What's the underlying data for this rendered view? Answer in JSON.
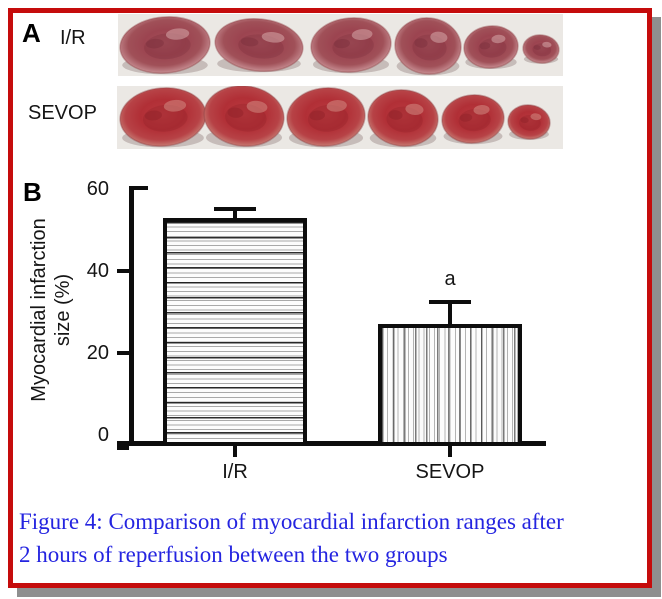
{
  "figure": {
    "panel_a": {
      "label": "A",
      "rows": [
        {
          "label": "I/R",
          "slices": 6
        },
        {
          "label": "SEVOP",
          "slices": 6
        }
      ],
      "tissue_colors": {
        "strip_background": "#ebe8e4",
        "ir_main": "#9c4450",
        "ir_dark": "#7a2e3c",
        "ir_light": "#dcb2b2",
        "sevop_main": "#b12f36",
        "sevop_dark": "#8e2228",
        "sevop_light": "#d6948a"
      }
    },
    "panel_b": {
      "label": "B"
    },
    "caption_lines": [
      "Figure 4: Comparison of myocardial infarction ranges after",
      "2 hours of reperfusion between the two groups"
    ],
    "border_color": "#c50c0c",
    "shadow_color": "#8f8f8f",
    "caption_color": "#2424e0",
    "ink_color": "#0d0d0d"
  },
  "chart_data": {
    "type": "bar",
    "title": "",
    "xlabel": "",
    "ylabel": "Myocardial infarction size (%)",
    "ylabel_lines": [
      "Myocardial infarction",
      "size (%)"
    ],
    "categories": [
      "I/R",
      "SEVOP"
    ],
    "values": [
      53,
      27
    ],
    "errors_plus": [
      2.5,
      6
    ],
    "annotations": [
      {
        "category": "SEVOP",
        "text": "a"
      }
    ],
    "yticks": [
      0,
      20,
      40,
      60
    ],
    "ylim": [
      0,
      60
    ],
    "grid": false,
    "legend": false,
    "bar_fill_patterns": [
      "horizontal-lines",
      "vertical-lines"
    ]
  }
}
